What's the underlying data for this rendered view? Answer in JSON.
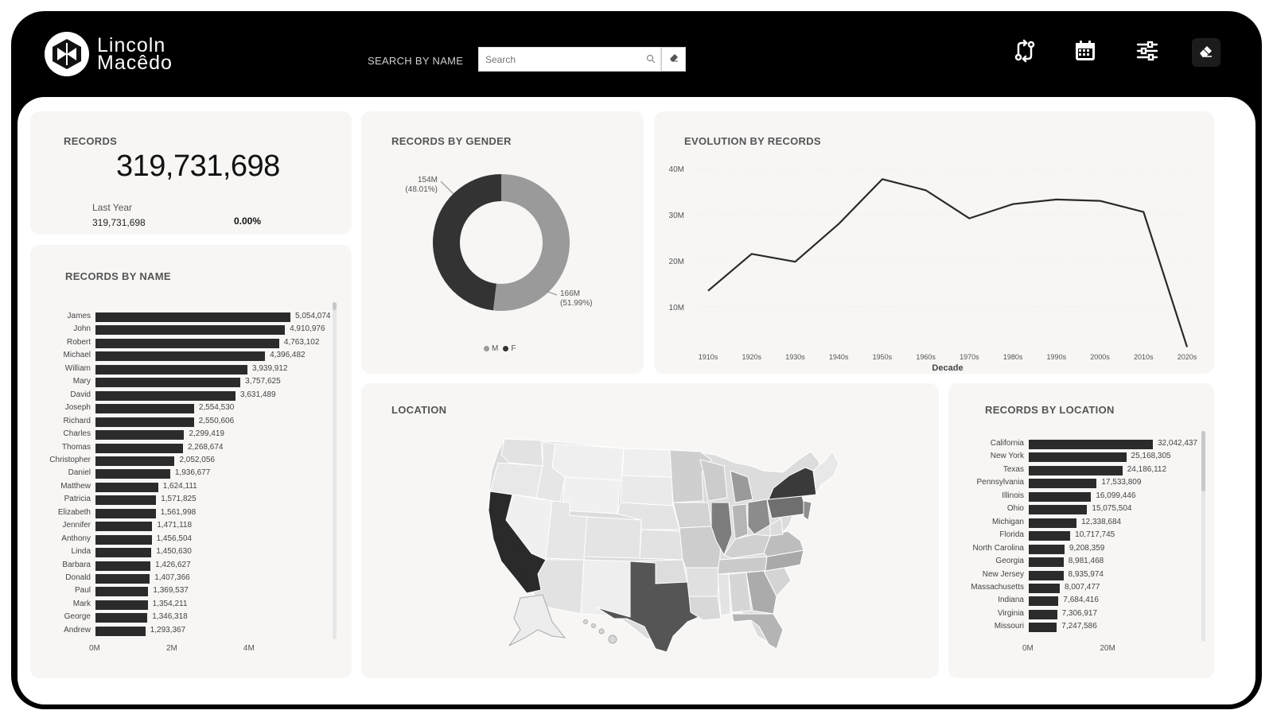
{
  "brand": {
    "line1": "Lincoln",
    "line2": "Macêdo"
  },
  "search": {
    "label": "SEARCH BY NAME",
    "placeholder": "Search",
    "value": ""
  },
  "header_icons": [
    "swap-icon",
    "calendar-icon",
    "sliders-icon",
    "eraser-icon"
  ],
  "kpi": {
    "title": "RECORDS",
    "value": "319,731,698",
    "last_year_label": "Last Year",
    "last_year_value": "319,731,698",
    "change": "0.00%"
  },
  "gender": {
    "title": "RECORDS BY GENDER",
    "legend": [
      "M",
      "F"
    ],
    "colors": {
      "M": "#9a9a9a",
      "F": "#333333"
    },
    "chart_data": {
      "type": "pie",
      "slices": [
        {
          "label": "M",
          "value": 166,
          "display": "166M",
          "pct": "(51.99%)"
        },
        {
          "label": "F",
          "value": 154,
          "display": "154M",
          "pct": "(48.01%)"
        }
      ]
    }
  },
  "evolution": {
    "title": "EVOLUTION BY RECORDS",
    "chart_data": {
      "type": "line",
      "xlabel": "Decade",
      "x": [
        "1910s",
        "1920s",
        "1930s",
        "1940s",
        "1950s",
        "1960s",
        "1970s",
        "1980s",
        "1990s",
        "2000s",
        "2010s",
        "2020s"
      ],
      "values": [
        13.5,
        21.5,
        19.8,
        28,
        37.7,
        35.3,
        29.2,
        32.3,
        33.3,
        33,
        30.6,
        1.3
      ],
      "ylim": [
        0,
        40
      ],
      "yticks": [
        "10M",
        "20M",
        "30M",
        "40M"
      ],
      "ytick_values": [
        10,
        20,
        30,
        40
      ]
    }
  },
  "names": {
    "title": "RECORDS BY NAME",
    "chart_data": {
      "type": "bar",
      "categories": [
        "James",
        "John",
        "Robert",
        "Michael",
        "William",
        "Mary",
        "David",
        "Joseph",
        "Richard",
        "Charles",
        "Thomas",
        "Christopher",
        "Daniel",
        "Matthew",
        "Patricia",
        "Elizabeth",
        "Jennifer",
        "Anthony",
        "Linda",
        "Barbara",
        "Donald",
        "Paul",
        "Mark",
        "George",
        "Andrew"
      ],
      "values": [
        5054074,
        4910976,
        4763102,
        4396482,
        3939912,
        3757625,
        3631489,
        2554530,
        2550606,
        2299419,
        2268674,
        2052056,
        1936677,
        1624111,
        1571825,
        1561998,
        1471118,
        1456504,
        1450630,
        1426627,
        1407366,
        1369537,
        1354211,
        1346318,
        1293367
      ],
      "labels": [
        "5,054,074",
        "4,910,976",
        "4,763,102",
        "4,396,482",
        "3,939,912",
        "3,757,625",
        "3,631,489",
        "2,554,530",
        "2,550,606",
        "2,299,419",
        "2,268,674",
        "2,052,056",
        "1,936,677",
        "1,624,111",
        "1,571,825",
        "1,561,998",
        "1,471,118",
        "1,456,504",
        "1,450,630",
        "1,426,627",
        "1,407,366",
        "1,369,537",
        "1,354,211",
        "1,346,318",
        "1,293,367"
      ],
      "xticks": [
        "0M",
        "2M",
        "4M"
      ],
      "xtick_values": [
        0,
        2000000,
        4000000
      ]
    }
  },
  "location": {
    "title": "LOCATION"
  },
  "states": {
    "title": "RECORDS BY LOCATION",
    "chart_data": {
      "type": "bar",
      "categories": [
        "California",
        "New York",
        "Texas",
        "Pennsylvania",
        "Illinois",
        "Ohio",
        "Michigan",
        "Florida",
        "North Carolina",
        "Georgia",
        "New Jersey",
        "Massachusetts",
        "Indiana",
        "Virginia",
        "Missouri"
      ],
      "values": [
        32042437,
        25168305,
        24186112,
        17533809,
        16099446,
        15075504,
        12338684,
        10717745,
        9208359,
        8981468,
        8935974,
        8007477,
        7684416,
        7306917,
        7247586
      ],
      "labels": [
        "32,042,437",
        "25,168,305",
        "24,186,112",
        "17,533,809",
        "16,099,446",
        "15,075,504",
        "12,338,684",
        "10,717,745",
        "9,208,359",
        "8,981,468",
        "8,935,974",
        "8,007,477",
        "7,684,416",
        "7,306,917",
        "7,247,586"
      ],
      "xticks": [
        "0M",
        "20M"
      ],
      "xtick_values": [
        0,
        20000000
      ]
    }
  }
}
